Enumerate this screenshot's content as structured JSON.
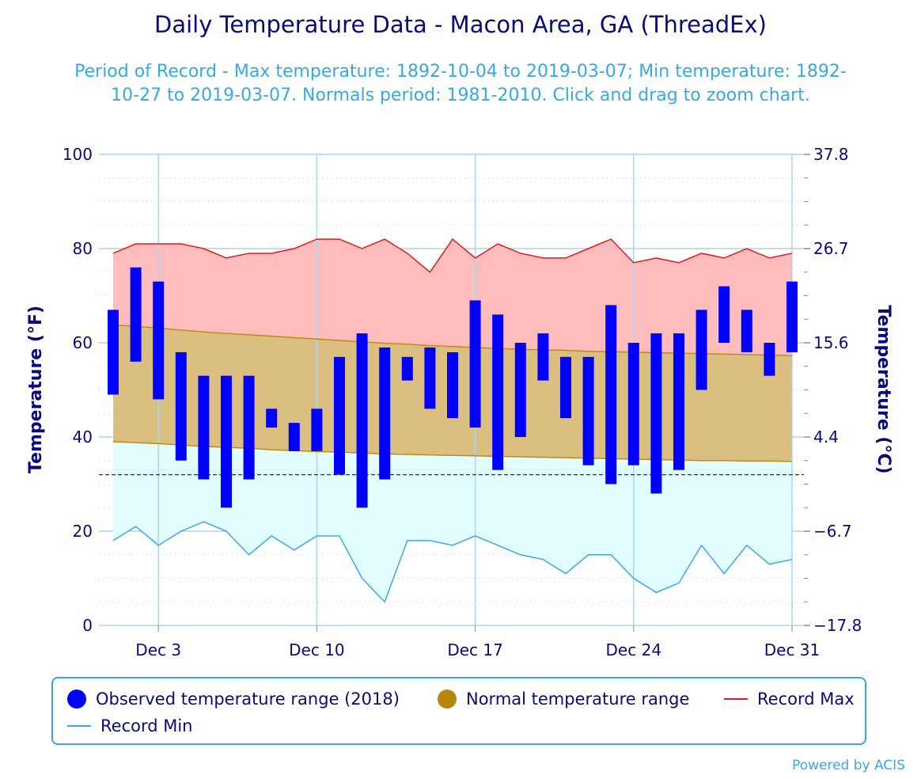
{
  "chart_data": {
    "type": "bar",
    "title": "Daily Temperature Data - Macon Area, GA (ThreadEx)",
    "subtitle": "Period of Record - Max temperature: 1892-10-04 to 2019-03-07; Min temperature: 1892-10-27 to 2019-03-07. Normals period: 1981-2010. Click and drag to zoom chart.",
    "ylabel": "Temperature (°F)",
    "ylabel_right": "Temperature (°C)",
    "ylim": [
      0,
      100
    ],
    "y_ticks": [
      "0",
      "20",
      "40",
      "60",
      "80",
      "100"
    ],
    "y_ticks_right": [
      "−17.8",
      "−6.7",
      "4.4",
      "15.6",
      "26.7",
      "37.8"
    ],
    "x_ticks": [
      {
        "day": 3,
        "label": "Dec 3"
      },
      {
        "day": 10,
        "label": "Dec 10"
      },
      {
        "day": 17,
        "label": "Dec 17"
      },
      {
        "day": 24,
        "label": "Dec 24"
      },
      {
        "day": 31,
        "label": "Dec 31"
      }
    ],
    "days": [
      1,
      2,
      3,
      4,
      5,
      6,
      7,
      8,
      9,
      10,
      11,
      12,
      13,
      14,
      15,
      16,
      17,
      18,
      19,
      20,
      21,
      22,
      23,
      24,
      25,
      26,
      27,
      28,
      29,
      30,
      31
    ],
    "freezing_line": 32,
    "series": [
      {
        "name": "Observed temperature range (2018)",
        "low": [
          49,
          56,
          48,
          35,
          31,
          25,
          31,
          42,
          37,
          37,
          32,
          25,
          31,
          52,
          46,
          44,
          42,
          33,
          40,
          52,
          44,
          34,
          30,
          34,
          28,
          33,
          50,
          60,
          58,
          53,
          58
        ],
        "high": [
          67,
          76,
          73,
          58,
          53,
          53,
          53,
          46,
          43,
          46,
          57,
          62,
          59,
          57,
          59,
          58,
          69,
          66,
          60,
          62,
          57,
          57,
          68,
          60,
          62,
          62,
          67,
          72,
          67,
          60,
          73
        ]
      },
      {
        "name": "Normal temperature range",
        "low": [
          39,
          38.8,
          38.6,
          38.3,
          38,
          37.8,
          37.6,
          37.3,
          37.1,
          36.9,
          36.8,
          36.6,
          36.4,
          36.3,
          36.2,
          36.1,
          36,
          35.9,
          35.8,
          35.7,
          35.6,
          35.5,
          35.4,
          35.3,
          35.2,
          35.1,
          35,
          35,
          34.9,
          34.9,
          34.8
        ],
        "high": [
          63.8,
          63.5,
          63.1,
          62.7,
          62.3,
          62,
          61.7,
          61.4,
          61.1,
          60.8,
          60.5,
          60.2,
          59.9,
          59.7,
          59.4,
          59.2,
          59,
          58.8,
          58.6,
          58.5,
          58.4,
          58.2,
          58.1,
          58,
          57.9,
          57.8,
          57.7,
          57.6,
          57.5,
          57.4,
          57.3
        ]
      },
      {
        "name": "Record Max",
        "values": [
          79,
          81,
          81,
          81,
          80,
          78,
          79,
          79,
          80,
          82,
          82,
          80,
          82,
          79,
          75,
          82,
          78,
          81,
          79,
          78,
          78,
          80,
          82,
          77,
          78,
          77,
          79,
          78,
          80,
          78,
          79
        ]
      },
      {
        "name": "Record Min",
        "values": [
          18,
          21,
          17,
          20,
          22,
          20,
          15,
          19,
          16,
          19,
          19,
          10,
          5,
          18,
          18,
          17,
          19,
          17,
          15,
          14,
          11,
          15,
          15,
          10,
          7,
          9,
          17,
          11,
          17,
          13,
          14
        ]
      }
    ],
    "colors": {
      "observed": "#0000ff",
      "normal_fill": "#dbbf80",
      "normal_line": "#c08a1a",
      "normal_legend": "#b8860b",
      "record_max_line": "#e01b1b",
      "record_max_fill": "#ffbcbc",
      "record_min_line": "#3aa8e8",
      "record_min_fill": "#e2fdfd",
      "axis_text": "#0a0a7a",
      "grid": "#b0d4ec"
    },
    "legend_position": "bottom"
  },
  "credit": "Powered by ACIS"
}
